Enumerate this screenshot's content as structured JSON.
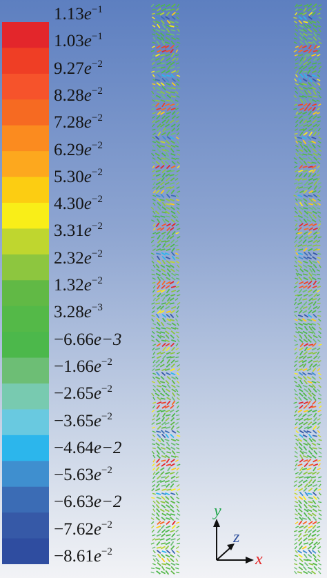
{
  "legend": {
    "colors": [
      "#e3262b",
      "#ef3e25",
      "#f6532b",
      "#f66a22",
      "#fb8b1f",
      "#fda81e",
      "#fccd12",
      "#f9ee18",
      "#bfd62f",
      "#8dc63f",
      "#61b945",
      "#54b948",
      "#4cb84b",
      "#6dbe75",
      "#78cab0",
      "#69c9e0",
      "#2cb6ec",
      "#3f8fcf",
      "#3b6cb5",
      "#3659a7",
      "#2f4da0"
    ],
    "labels": [
      {
        "mantissa": "1.13",
        "e": "e",
        "exp": "−1"
      },
      {
        "mantissa": "1.03",
        "e": "e",
        "exp": "−1"
      },
      {
        "mantissa": "9.27",
        "e": "e",
        "exp": "−2"
      },
      {
        "mantissa": "8.28",
        "e": "e",
        "exp": "−2"
      },
      {
        "mantissa": "7.28",
        "e": "e",
        "exp": "−2"
      },
      {
        "mantissa": "6.29",
        "e": "e",
        "exp": "−2"
      },
      {
        "mantissa": "5.30",
        "e": "e",
        "exp": "−2"
      },
      {
        "mantissa": "4.30",
        "e": "e",
        "exp": "−2"
      },
      {
        "mantissa": "3.31",
        "e": "e",
        "exp": "−2"
      },
      {
        "mantissa": "2.32",
        "e": "e",
        "exp": "−2"
      },
      {
        "mantissa": "1.32",
        "e": "e",
        "exp": "−2"
      },
      {
        "mantissa": "3.28",
        "e": "e",
        "exp": "−3"
      },
      {
        "mantissa": "−6.66",
        "e": "e−3",
        "exp": ""
      },
      {
        "mantissa": "−1.66",
        "e": "e",
        "exp": "−2"
      },
      {
        "mantissa": "−2.65",
        "e": "e",
        "exp": "−2"
      },
      {
        "mantissa": "−3.65",
        "e": "e",
        "exp": "−2"
      },
      {
        "mantissa": "−4.64",
        "e": "e−2",
        "exp": ""
      },
      {
        "mantissa": "−5.63",
        "e": "e",
        "exp": "−2"
      },
      {
        "mantissa": "−6.63",
        "e": "e−2",
        "exp": ""
      },
      {
        "mantissa": "−7.62",
        "e": "e",
        "exp": "−2"
      },
      {
        "mantissa": "−8.61",
        "e": "e",
        "exp": "−2"
      }
    ]
  },
  "axes": {
    "y_label": "y",
    "z_label": "z",
    "x_label": "x",
    "y_color": "#1fa54a",
    "z_color": "#2e4f9c",
    "x_color": "#e32626"
  }
}
